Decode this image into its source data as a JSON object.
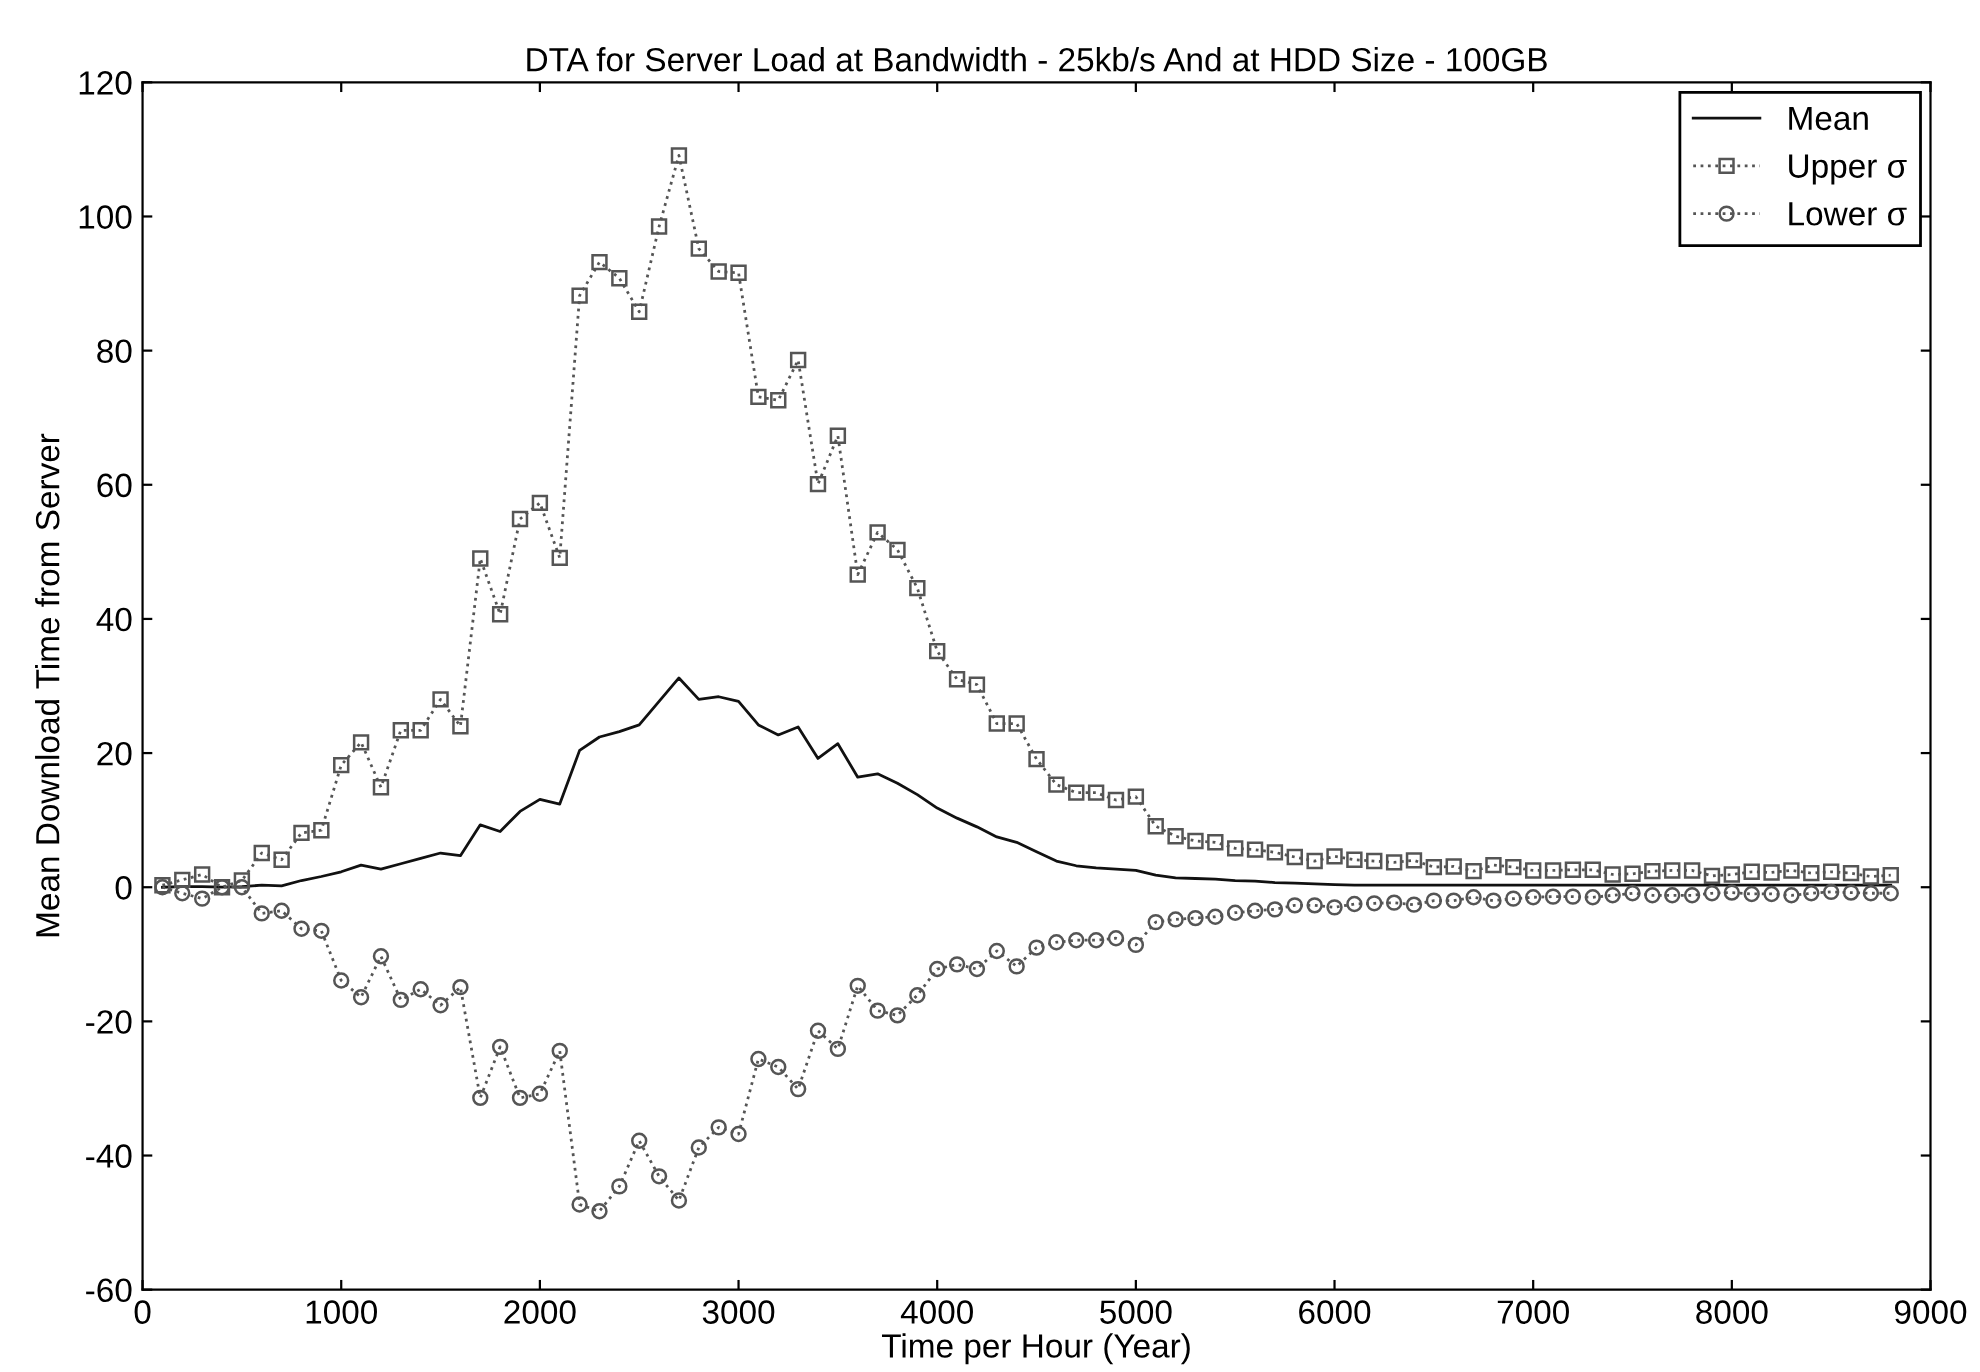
{
  "chart_data": {
    "type": "line",
    "title": "DTA for Server Load at Bandwidth - 25kb/s And at HDD Size - 100GB",
    "xlabel": "Time per Hour (Year)",
    "ylabel": "Mean Download Time from Server",
    "x": [
      100,
      200,
      300,
      400,
      500,
      600,
      700,
      800,
      900,
      1000,
      1100,
      1200,
      1300,
      1400,
      1500,
      1600,
      1700,
      1800,
      1900,
      2000,
      2100,
      2200,
      2300,
      2400,
      2500,
      2600,
      2700,
      2800,
      2900,
      3000,
      3100,
      3200,
      3300,
      3400,
      3500,
      3600,
      3700,
      3800,
      3900,
      4000,
      4100,
      4200,
      4300,
      4400,
      4500,
      4600,
      4700,
      4800,
      4900,
      5000,
      5100,
      5200,
      5300,
      5400,
      5500,
      5600,
      5700,
      5800,
      5900,
      6000,
      6100,
      6200,
      6300,
      6400,
      6500,
      6600,
      6700,
      6800,
      6900,
      7000,
      7100,
      7200,
      7300,
      7400,
      7500,
      7600,
      7700,
      7800,
      7900,
      8000,
      8100,
      8200,
      8300,
      8400,
      8500,
      8600,
      8700,
      8800
    ],
    "series": [
      {
        "name": "Mean",
        "color": "#111111",
        "marker": "none",
        "line_style": "solid",
        "values": [
          0,
          0.1,
          0.1,
          0,
          0.1,
          0.3,
          0.2,
          1.0,
          1.6,
          2.3,
          3.3,
          2.7,
          3.5,
          4.3,
          5.1,
          4.7,
          9.3,
          8.3,
          11.3,
          13.1,
          12.4,
          20.4,
          22.4,
          23.2,
          24.2,
          27.7,
          31.2,
          28.0,
          28.4,
          27.7,
          24.2,
          22.7,
          23.9,
          19.2,
          21.4,
          16.4,
          16.9,
          15.5,
          13.8,
          11.8,
          10.3,
          9.0,
          7.5,
          6.7,
          5.3,
          3.9,
          3.2,
          2.9,
          2.7,
          2.5,
          1.8,
          1.4,
          1.3,
          1.2,
          1.0,
          0.9,
          0.7,
          0.6,
          0.5,
          0.4,
          0.3,
          0.3,
          0.3,
          0.3,
          0.3,
          0.3,
          0.3,
          0.3,
          0.3,
          0.3,
          0.3,
          0.3,
          0.3,
          0.3,
          0.3,
          0.3,
          0.3,
          0.3,
          0.3,
          0.3,
          0.3,
          0.3,
          0.3,
          0.3,
          0.3,
          0.3,
          0.3,
          0.3
        ]
      },
      {
        "name": "Upper σ",
        "color": "#555555",
        "marker": "square",
        "line_style": "dotted",
        "values": [
          0.3,
          1.1,
          1.9,
          0,
          1.0,
          5.1,
          4.1,
          8.1,
          8.5,
          18.2,
          21.6,
          14.9,
          23.4,
          23.4,
          28.0,
          24.0,
          49.0,
          40.7,
          54.9,
          57.3,
          49.1,
          88.2,
          93.2,
          90.8,
          85.8,
          98.5,
          109.1,
          95.2,
          91.8,
          91.6,
          73.1,
          72.6,
          78.6,
          60.1,
          67.3,
          46.6,
          52.9,
          50.3,
          44.6,
          35.2,
          31.0,
          30.2,
          24.4,
          24.4,
          19.1,
          15.3,
          14.1,
          14.1,
          13.0,
          13.5,
          9.1,
          7.6,
          6.9,
          6.7,
          5.8,
          5.6,
          5.2,
          4.5,
          3.9,
          4.6,
          4.1,
          3.9,
          3.7,
          4.0,
          3.0,
          3.1,
          2.4,
          3.3,
          3.0,
          2.5,
          2.5,
          2.6,
          2.6,
          1.9,
          2.0,
          2.4,
          2.5,
          2.5,
          1.7,
          1.9,
          2.3,
          2.2,
          2.5,
          2.1,
          2.3,
          2.1,
          1.6,
          1.8
        ]
      },
      {
        "name": "Lower σ",
        "color": "#555555",
        "marker": "circle",
        "line_style": "dotted",
        "values": [
          0,
          -0.9,
          -1.7,
          0,
          0,
          -3.9,
          -3.5,
          -6.2,
          -6.5,
          -13.9,
          -16.4,
          -10.3,
          -16.8,
          -15.2,
          -17.6,
          -14.9,
          -31.4,
          -23.8,
          -31.4,
          -30.8,
          -24.4,
          -47.3,
          -48.3,
          -44.6,
          -37.8,
          -43.1,
          -46.7,
          -38.8,
          -35.8,
          -36.8,
          -25.6,
          -26.8,
          -30.1,
          -21.4,
          -24.1,
          -14.7,
          -18.4,
          -19.1,
          -16.1,
          -12.2,
          -11.5,
          -12.2,
          -9.5,
          -11.8,
          -9.0,
          -8.2,
          -7.9,
          -7.9,
          -7.6,
          -8.6,
          -5.2,
          -4.8,
          -4.6,
          -4.4,
          -3.8,
          -3.5,
          -3.3,
          -2.7,
          -2.7,
          -3.0,
          -2.5,
          -2.4,
          -2.3,
          -2.6,
          -2.0,
          -2.0,
          -1.5,
          -2.0,
          -1.7,
          -1.5,
          -1.4,
          -1.4,
          -1.5,
          -1.2,
          -0.9,
          -1.2,
          -1.2,
          -1.2,
          -0.9,
          -0.8,
          -1.0,
          -1.0,
          -1.2,
          -0.9,
          -0.7,
          -0.8,
          -0.9,
          -0.9
        ]
      }
    ],
    "xlim": [
      0,
      9000
    ],
    "xticks": [
      0,
      1000,
      2000,
      3000,
      4000,
      5000,
      6000,
      7000,
      8000,
      9000
    ],
    "ylim": [
      -60,
      120
    ],
    "yticks": [
      -60,
      -40,
      -20,
      0,
      20,
      40,
      60,
      80,
      100,
      120
    ],
    "legend": "top right",
    "grid": false
  }
}
